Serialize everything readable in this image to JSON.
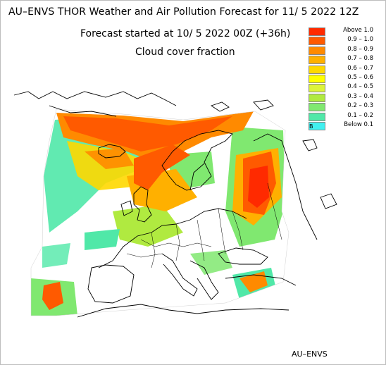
{
  "header": {
    "title": "AU–ENVS THOR Weather and Air Pollution Forecast for 11/ 5 2022  12Z",
    "subtitle": "Forecast started at 10/ 5 2022  00Z (+36h)",
    "field": "Cloud cover fraction"
  },
  "legend": {
    "items": [
      {
        "label": "Above   1.0",
        "color": "#ff2a00"
      },
      {
        "label": "0.9  –  1.0",
        "color": "#ff5a00"
      },
      {
        "label": "0.8  –  0.9",
        "color": "#ff8a00"
      },
      {
        "label": "0.7  –  0.8",
        "color": "#ffb000"
      },
      {
        "label": "0.6  –  0.7",
        "color": "#ffd800"
      },
      {
        "label": "0.5  –  0.6",
        "color": "#ffff00"
      },
      {
        "label": "0.4  –  0.5",
        "color": "#ddf43a"
      },
      {
        "label": "0.3  –  0.4",
        "color": "#b0ea40"
      },
      {
        "label": "0.2  –  0.3",
        "color": "#80e870"
      },
      {
        "label": "0.1  –  0.2",
        "color": "#50e8a8"
      },
      {
        "label": "Below   0.1",
        "color": "#40f0f0",
        "mark": "B"
      }
    ]
  },
  "footer": {
    "credit": "AU–ENVS"
  }
}
